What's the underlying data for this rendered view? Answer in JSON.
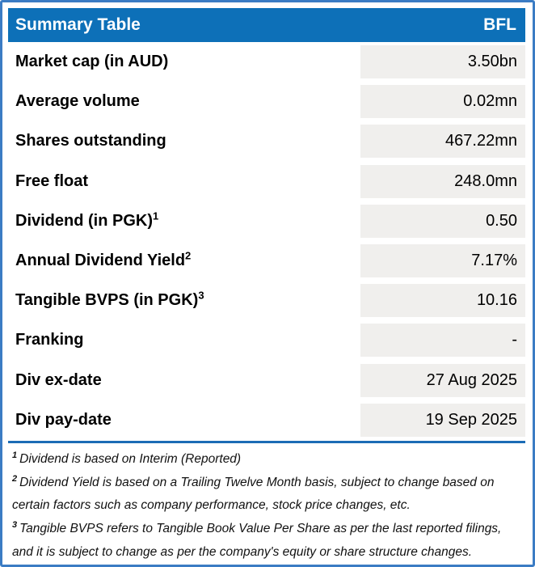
{
  "header": {
    "title": "Summary Table",
    "ticker": "BFL"
  },
  "rows": [
    {
      "label": "Market cap (in AUD)",
      "sup": "",
      "value": "3.50bn"
    },
    {
      "label": "Average volume",
      "sup": "",
      "value": "0.02mn"
    },
    {
      "label": "Shares outstanding",
      "sup": "",
      "value": "467.22mn"
    },
    {
      "label": "Free float",
      "sup": "",
      "value": "248.0mn"
    },
    {
      "label": "Dividend (in PGK)",
      "sup": "1",
      "value": "0.50"
    },
    {
      "label": "Annual Dividend Yield",
      "sup": "2",
      "value": "7.17%"
    },
    {
      "label": "Tangible BVPS (in PGK)",
      "sup": "3",
      "value": "10.16"
    },
    {
      "label": "Franking",
      "sup": "",
      "value": "-"
    },
    {
      "label": "Div ex-date",
      "sup": "",
      "value": "27 Aug 2025"
    },
    {
      "label": "Div pay-date",
      "sup": "",
      "value": "19 Sep 2025"
    }
  ],
  "footnotes": [
    {
      "sup": "1",
      "text": "Dividend is based on Interim (Reported)"
    },
    {
      "sup": "2",
      "text": "Dividend Yield is based on a Trailing Twelve Month basis, subject to change based on certain factors such as company performance, stock price changes, etc."
    },
    {
      "sup": "3",
      "text": "Tangible BVPS refers to Tangible Book Value Per Share as per the last reported filings, and it is subject to change as per the company's equity or share structure changes."
    }
  ],
  "colors": {
    "header_bg": "#0d70b8",
    "border": "#3b7cc4",
    "cell_bg": "#f0efed",
    "rule": "#1b6cb5",
    "header_text": "#ffffff",
    "body_text": "#000000"
  }
}
